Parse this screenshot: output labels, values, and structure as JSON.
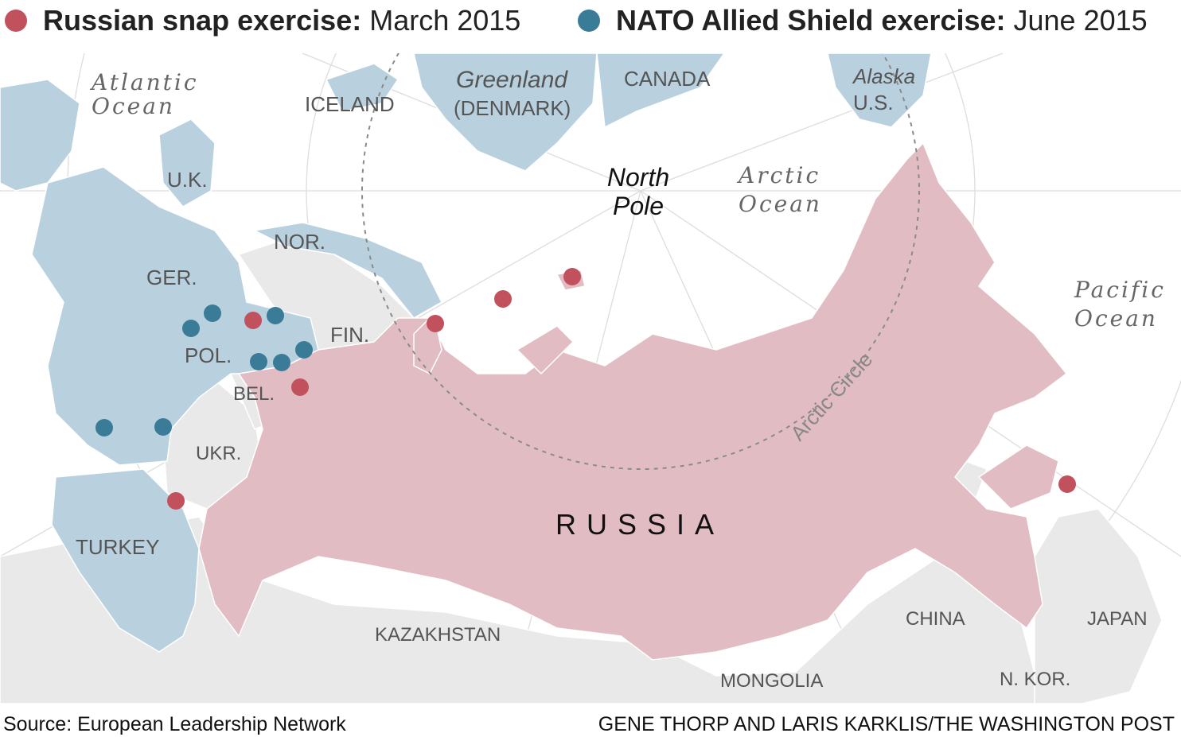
{
  "legend": {
    "russian": {
      "bold": "Russian snap exercise:",
      "date": "March 2015",
      "color": "#c1515d"
    },
    "nato": {
      "bold": "NATO Allied Shield exercise:",
      "date": "June 2015",
      "color": "#3a7b98"
    }
  },
  "colors": {
    "russia_fill": "#e2bcc3",
    "nato_fill": "#b9d1df",
    "other_land": "#e8e9e8",
    "ocean": "#ffffff",
    "graticule": "#dddddd",
    "arctic_circle": "#8a8a8a"
  },
  "labels": {
    "atlantic_1": "Atlantic",
    "atlantic_2": "Ocean",
    "iceland": "ICELAND",
    "greenland_1": "Greenland",
    "greenland_2": "(DENMARK)",
    "canada": "CANADA",
    "alaska_1": "Alaska",
    "alaska_2": "U.S.",
    "north_pole_1": "North",
    "north_pole_2": "Pole",
    "arctic_1": "Arctic",
    "arctic_2": "Ocean",
    "pacific_1": "Pacific",
    "pacific_2": "Ocean",
    "uk": "U.K.",
    "nor": "NOR.",
    "ger": "GER.",
    "pol": "POL.",
    "fin": "FIN.",
    "bel": "BEL.",
    "ukr": "UKR.",
    "turkey": "TURKEY",
    "russia": "RUSSIA",
    "kazakhstan": "KAZAKHSTAN",
    "china": "CHINA",
    "mongolia": "MONGOLIA",
    "japan": "JAPAN",
    "nkor": "N. KOR.",
    "arctic_circle": "Arctic Circle"
  },
  "footer": {
    "source": "Source: European Leadership Network",
    "credit": "GENE THORP AND LARIS KARKLIS/THE WASHINGTON POST"
  }
}
